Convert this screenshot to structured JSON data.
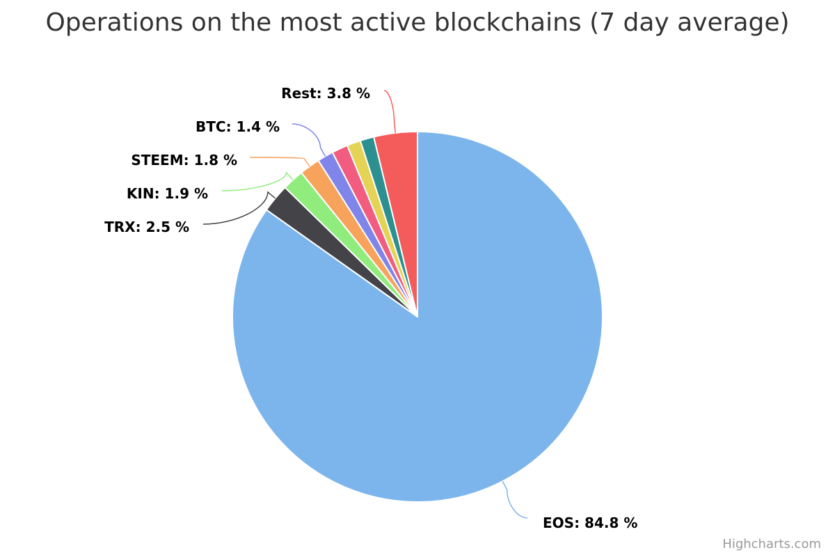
{
  "chart_data": {
    "type": "pie",
    "title": "Operations on the most active blockchains (7 day average)",
    "unit": "%",
    "slices": [
      {
        "name": "EOS",
        "value": 84.8,
        "label": "EOS: 84.8 %",
        "color": "#7cb5ec",
        "show_label": true
      },
      {
        "name": "TRX",
        "value": 2.5,
        "label": "TRX: 2.5 %",
        "color": "#434348",
        "show_label": true
      },
      {
        "name": "KIN",
        "value": 1.9,
        "label": "KIN: 1.9 %",
        "color": "#90ed7d",
        "show_label": true
      },
      {
        "name": "STEEM",
        "value": 1.8,
        "label": "STEEM: 1.8 %",
        "color": "#f7a35c",
        "show_label": true
      },
      {
        "name": "BTC",
        "value": 1.4,
        "label": "BTC: 1.4 %",
        "color": "#8085e9",
        "show_label": true
      },
      {
        "name": "",
        "value": 1.4,
        "label": "",
        "color": "#f15c80",
        "show_label": false
      },
      {
        "name": "",
        "value": 1.2,
        "label": "",
        "color": "#e4d354",
        "show_label": false
      },
      {
        "name": "",
        "value": 1.2,
        "label": "",
        "color": "#2b908f",
        "show_label": false
      },
      {
        "name": "Rest",
        "value": 3.8,
        "label": "Rest: 3.8 %",
        "color": "#f45b5b",
        "show_label": true
      }
    ]
  },
  "credits": "Highcharts.com"
}
